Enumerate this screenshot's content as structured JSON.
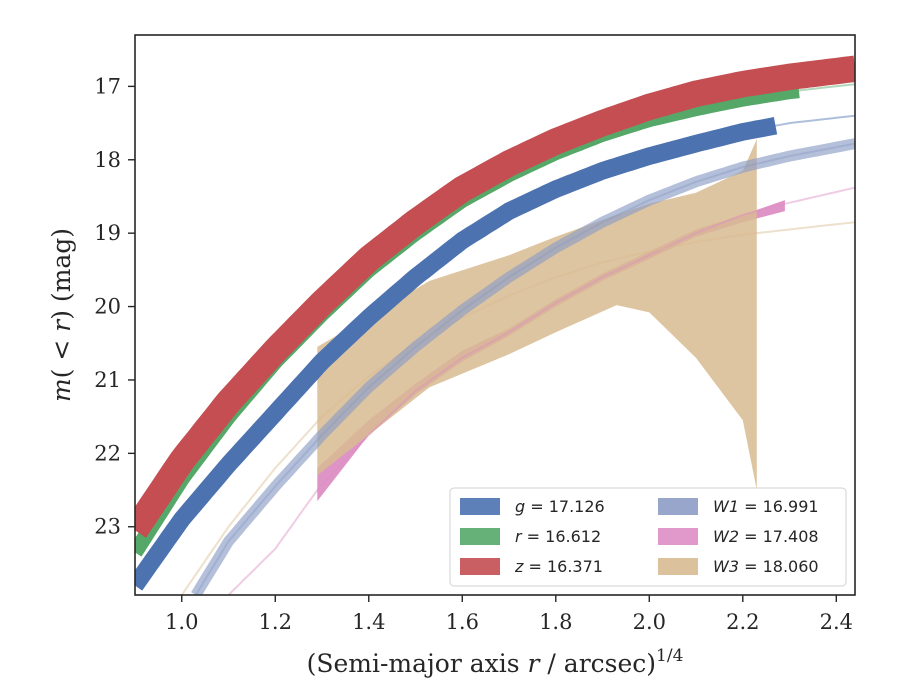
{
  "chart_data": {
    "type": "line",
    "xlabel": "(Semi-major axis r / arcsec)^1/4",
    "ylabel": "m(< r) (mag)",
    "xlim": [
      0.9,
      2.44
    ],
    "ylim": [
      23.93,
      16.3
    ],
    "y_inverted": true,
    "x_ticks": [
      "1.0",
      "1.2",
      "1.4",
      "1.6",
      "1.8",
      "2.0",
      "2.2",
      "2.4"
    ],
    "y_ticks": [
      "17",
      "18",
      "19",
      "20",
      "21",
      "22",
      "23"
    ],
    "legend_position": "lower-right",
    "series": [
      {
        "name": "g = 17.126",
        "label_italic": "g",
        "label_value": "= 17.126",
        "color": "#4c72b0",
        "x": [
          0.9,
          1.0,
          1.1,
          1.2,
          1.3,
          1.4,
          1.5,
          1.6,
          1.7,
          1.8,
          1.9,
          2.0,
          2.1,
          2.2,
          2.3,
          2.44
        ],
        "y": [
          23.8,
          22.9,
          22.15,
          21.45,
          20.75,
          20.15,
          19.6,
          19.1,
          18.7,
          18.4,
          18.15,
          17.95,
          17.78,
          17.62,
          17.5,
          17.4
        ],
        "solid_until_x": 2.27,
        "width_mag": 0.08
      },
      {
        "name": "r = 16.612",
        "label_italic": "r",
        "label_value": "= 16.612",
        "color": "#55a868",
        "x": [
          0.9,
          1.0,
          1.1,
          1.2,
          1.3,
          1.4,
          1.5,
          1.6,
          1.7,
          1.8,
          1.9,
          2.0,
          2.1,
          2.2,
          2.3,
          2.44
        ],
        "y": [
          23.35,
          22.35,
          21.5,
          20.75,
          20.1,
          19.5,
          19.0,
          18.55,
          18.2,
          17.9,
          17.65,
          17.45,
          17.3,
          17.17,
          17.07,
          16.97
        ],
        "solid_until_x": 2.32,
        "width_mag": 0.07
      },
      {
        "name": "z = 16.371",
        "label_italic": "z",
        "label_value": "= 16.371",
        "color": "#c44e52",
        "x": [
          0.9,
          1.0,
          1.1,
          1.2,
          1.3,
          1.4,
          1.5,
          1.6,
          1.7,
          1.8,
          1.9,
          2.0,
          2.1,
          2.2,
          2.3,
          2.44
        ],
        "y": [
          23.05,
          22.1,
          21.3,
          20.6,
          19.95,
          19.35,
          18.85,
          18.4,
          18.05,
          17.75,
          17.5,
          17.28,
          17.1,
          16.97,
          16.87,
          16.76
        ],
        "solid_until_x": 2.44,
        "width_mag": 0.12
      },
      {
        "name": "W1 = 16.991",
        "label_italic": "W1",
        "label_value": "= 16.991",
        "color": "#8c9cc4",
        "x": [
          1.03,
          1.1,
          1.2,
          1.3,
          1.4,
          1.5,
          1.6,
          1.7,
          1.8,
          1.9,
          2.0,
          2.1,
          2.2,
          2.3,
          2.44
        ],
        "y": [
          23.93,
          23.2,
          22.45,
          21.75,
          21.1,
          20.55,
          20.05,
          19.6,
          19.2,
          18.85,
          18.55,
          18.3,
          18.1,
          17.95,
          17.78
        ],
        "solid_until_x": 1.29,
        "band_until_x": 2.44,
        "width_mag": 0.05
      },
      {
        "name": "W2 = 17.408",
        "label_italic": "W2",
        "label_value": "= 17.408",
        "color": "#dd8ec4",
        "x": [
          1.1,
          1.2,
          1.29,
          1.4,
          1.5,
          1.6,
          1.7,
          1.8,
          1.9,
          2.0,
          2.1,
          2.2,
          2.29,
          2.44
        ],
        "y": [
          23.93,
          23.3,
          22.5,
          21.75,
          21.15,
          20.7,
          20.35,
          19.95,
          19.6,
          19.3,
          19.0,
          18.75,
          18.6,
          18.38
        ],
        "band_x": [
          1.29,
          1.4,
          1.5,
          1.6,
          1.7,
          1.8,
          1.9,
          2.0,
          2.1,
          2.2,
          2.29
        ],
        "band_low": [
          22.65,
          21.75,
          21.2,
          20.75,
          20.4,
          20.0,
          19.65,
          19.35,
          19.05,
          18.85,
          18.7
        ],
        "band_high": [
          22.2,
          21.55,
          21.05,
          20.6,
          20.3,
          19.9,
          19.55,
          19.25,
          18.95,
          18.75,
          18.55
        ],
        "solid_until_x": 1.29
      },
      {
        "name": "W3 = 18.060",
        "label_italic": "W3",
        "label_value": "= 18.060",
        "color": "#d8bb91",
        "x": [
          1.0,
          1.1,
          1.2,
          1.3,
          1.4,
          1.5,
          1.6,
          1.7,
          1.8,
          1.9,
          2.0,
          2.1,
          2.2,
          2.3,
          2.44
        ],
        "y": [
          23.93,
          23.0,
          22.2,
          21.5,
          20.95,
          20.5,
          20.15,
          19.85,
          19.6,
          19.4,
          19.25,
          19.12,
          19.02,
          18.95,
          18.85
        ],
        "band_x": [
          1.29,
          1.53,
          1.7,
          1.8,
          1.93,
          2.0,
          2.1,
          2.2,
          2.23
        ],
        "band_high": [
          20.55,
          19.65,
          19.3,
          19.05,
          18.75,
          18.6,
          18.45,
          18.15,
          17.72
        ],
        "band_low": [
          22.3,
          21.1,
          20.65,
          20.35,
          19.98,
          20.08,
          20.7,
          21.55,
          22.5
        ],
        "solid_until_x": 1.29
      }
    ]
  }
}
